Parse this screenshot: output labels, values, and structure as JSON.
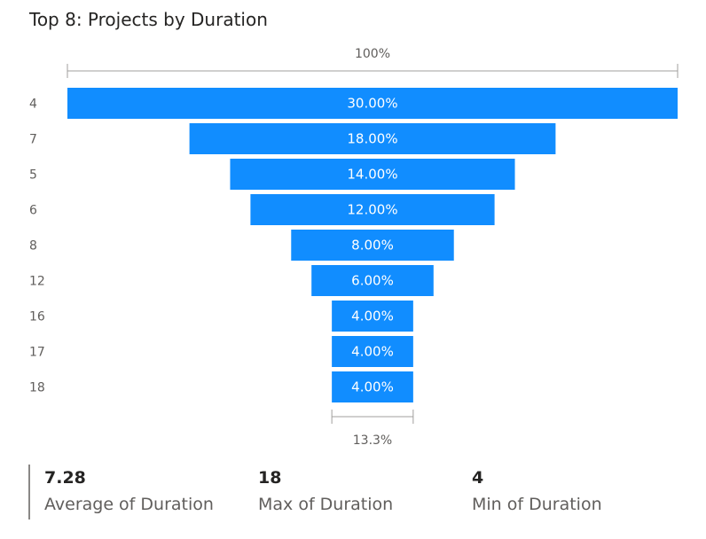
{
  "chart_data": {
    "type": "funnel",
    "title": "Top 8: Projects by Duration",
    "top_percent_label": "100%",
    "bottom_percent_label": "13.3%",
    "categories": [
      "4",
      "7",
      "5",
      "6",
      "8",
      "12",
      "16",
      "17",
      "18"
    ],
    "values": [
      30.0,
      18.0,
      14.0,
      12.0,
      8.0,
      6.0,
      4.0,
      4.0,
      4.0
    ],
    "data_labels": [
      "30.00%",
      "18.00%",
      "14.00%",
      "12.00%",
      "8.00%",
      "6.00%",
      "4.00%",
      "4.00%",
      "4.00%"
    ],
    "bar_color": "#118DFF"
  },
  "kpis": [
    {
      "value": "7.28",
      "label": "Average of Duration"
    },
    {
      "value": "18",
      "label": "Max of Duration"
    },
    {
      "value": "4",
      "label": "Min of Duration"
    }
  ]
}
